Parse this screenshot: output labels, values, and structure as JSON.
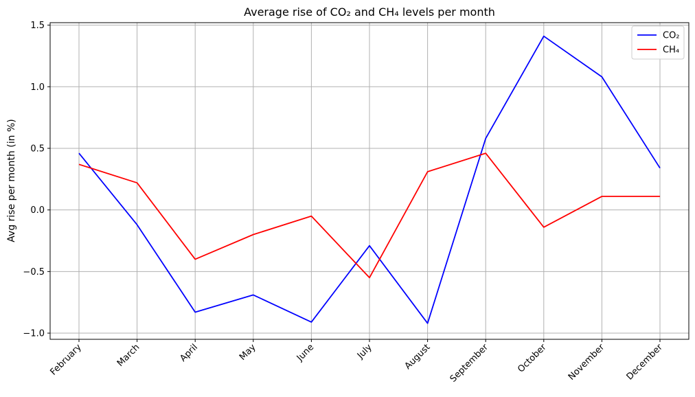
{
  "chart_data": {
    "type": "line",
    "title": "Average rise of CO₂ and CH₄ levels per month",
    "xlabel": "",
    "ylabel": "Avg rise per month (in %)",
    "categories": [
      "February",
      "March",
      "April",
      "May",
      "June",
      "July",
      "August",
      "September",
      "October",
      "November",
      "December"
    ],
    "ylim": [
      -1.05,
      1.52
    ],
    "yticks": [
      -1.0,
      -0.5,
      0.0,
      0.5,
      1.0,
      1.5
    ],
    "ytick_labels": [
      "−1.0",
      "−0.5",
      "0.0",
      "0.5",
      "1.0",
      "1.5"
    ],
    "grid": true,
    "legend_position": "top-right",
    "series": [
      {
        "name": "CO₂",
        "color": "#0000ff",
        "values": [
          0.46,
          -0.12,
          -0.83,
          -0.69,
          -0.91,
          -0.29,
          -0.92,
          0.58,
          1.41,
          1.08,
          0.34
        ]
      },
      {
        "name": "CH₄",
        "color": "#ff0000",
        "values": [
          0.37,
          0.22,
          -0.4,
          -0.2,
          -0.05,
          -0.55,
          0.31,
          0.46,
          -0.14,
          0.11,
          0.11
        ]
      }
    ]
  }
}
